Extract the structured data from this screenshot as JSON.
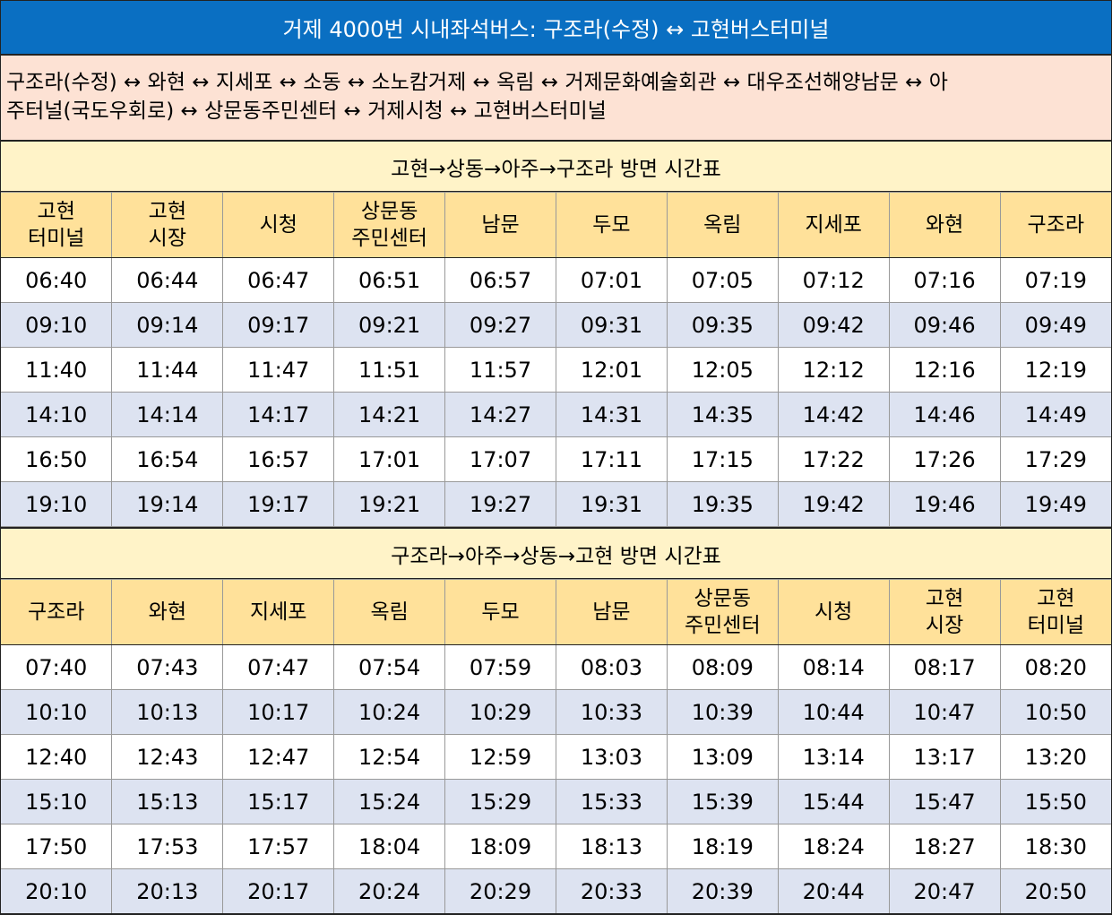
{
  "title": "거제 4000번 시내좌석버스: 구조라(수정) ↔ 고현버스터미널",
  "route": {
    "line1": "구조라(수정) ↔ 와현 ↔ 지세포 ↔ 소동 ↔ 소노캄거제 ↔ 옥림 ↔ 거제문화예술회관 ↔ 대우조선해양남문 ↔ 아",
    "line2": "주터널(국도우회로) ↔ 상문동주민센터 ↔ 거제시청 ↔ 고현버스터미널"
  },
  "timetables": [
    {
      "heading": "고현→상동→아주→구조라 방면 시간표",
      "columns": [
        [
          "고현",
          "터미널"
        ],
        [
          "고현",
          "시장"
        ],
        [
          "시청",
          ""
        ],
        [
          "상문동",
          "주민센터"
        ],
        [
          "남문",
          ""
        ],
        [
          "두모",
          ""
        ],
        [
          "옥림",
          ""
        ],
        [
          "지세포",
          ""
        ],
        [
          "와현",
          ""
        ],
        [
          "구조라",
          ""
        ]
      ],
      "rows": [
        [
          "06:40",
          "06:44",
          "06:47",
          "06:51",
          "06:57",
          "07:01",
          "07:05",
          "07:12",
          "07:16",
          "07:19"
        ],
        [
          "09:10",
          "09:14",
          "09:17",
          "09:21",
          "09:27",
          "09:31",
          "09:35",
          "09:42",
          "09:46",
          "09:49"
        ],
        [
          "11:40",
          "11:44",
          "11:47",
          "11:51",
          "11:57",
          "12:01",
          "12:05",
          "12:12",
          "12:16",
          "12:19"
        ],
        [
          "14:10",
          "14:14",
          "14:17",
          "14:21",
          "14:27",
          "14:31",
          "14:35",
          "14:42",
          "14:46",
          "14:49"
        ],
        [
          "16:50",
          "16:54",
          "16:57",
          "17:01",
          "17:07",
          "17:11",
          "17:15",
          "17:22",
          "17:26",
          "17:29"
        ],
        [
          "19:10",
          "19:14",
          "19:17",
          "19:21",
          "19:27",
          "19:31",
          "19:35",
          "19:42",
          "19:46",
          "19:49"
        ]
      ]
    },
    {
      "heading": "구조라→아주→상동→고현 방면 시간표",
      "columns": [
        [
          "구조라",
          ""
        ],
        [
          "와현",
          ""
        ],
        [
          "지세포",
          ""
        ],
        [
          "옥림",
          ""
        ],
        [
          "두모",
          ""
        ],
        [
          "남문",
          ""
        ],
        [
          "상문동",
          "주민센터"
        ],
        [
          "시청",
          ""
        ],
        [
          "고현",
          "시장"
        ],
        [
          "고현",
          "터미널"
        ]
      ],
      "rows": [
        [
          "07:40",
          "07:43",
          "07:47",
          "07:54",
          "07:59",
          "08:03",
          "08:09",
          "08:14",
          "08:17",
          "08:20"
        ],
        [
          "10:10",
          "10:13",
          "10:17",
          "10:24",
          "10:29",
          "10:33",
          "10:39",
          "10:44",
          "10:47",
          "10:50"
        ],
        [
          "12:40",
          "12:43",
          "12:47",
          "12:54",
          "12:59",
          "13:03",
          "13:09",
          "13:14",
          "13:17",
          "13:20"
        ],
        [
          "15:10",
          "15:13",
          "15:17",
          "15:24",
          "15:29",
          "15:33",
          "15:39",
          "15:44",
          "15:47",
          "15:50"
        ],
        [
          "17:50",
          "17:53",
          "17:57",
          "18:04",
          "18:09",
          "18:13",
          "18:19",
          "18:24",
          "18:27",
          "18:30"
        ],
        [
          "20:10",
          "20:13",
          "20:17",
          "20:24",
          "20:29",
          "20:33",
          "20:39",
          "20:44",
          "20:47",
          "20:50"
        ]
      ]
    }
  ],
  "colors": {
    "title_bg": "#0a6fc2",
    "route_bg": "#fde2d4",
    "section_bg": "#fff3c8",
    "header_bg": "#ffe19a",
    "shade_row_bg": "#dde3f1"
  }
}
